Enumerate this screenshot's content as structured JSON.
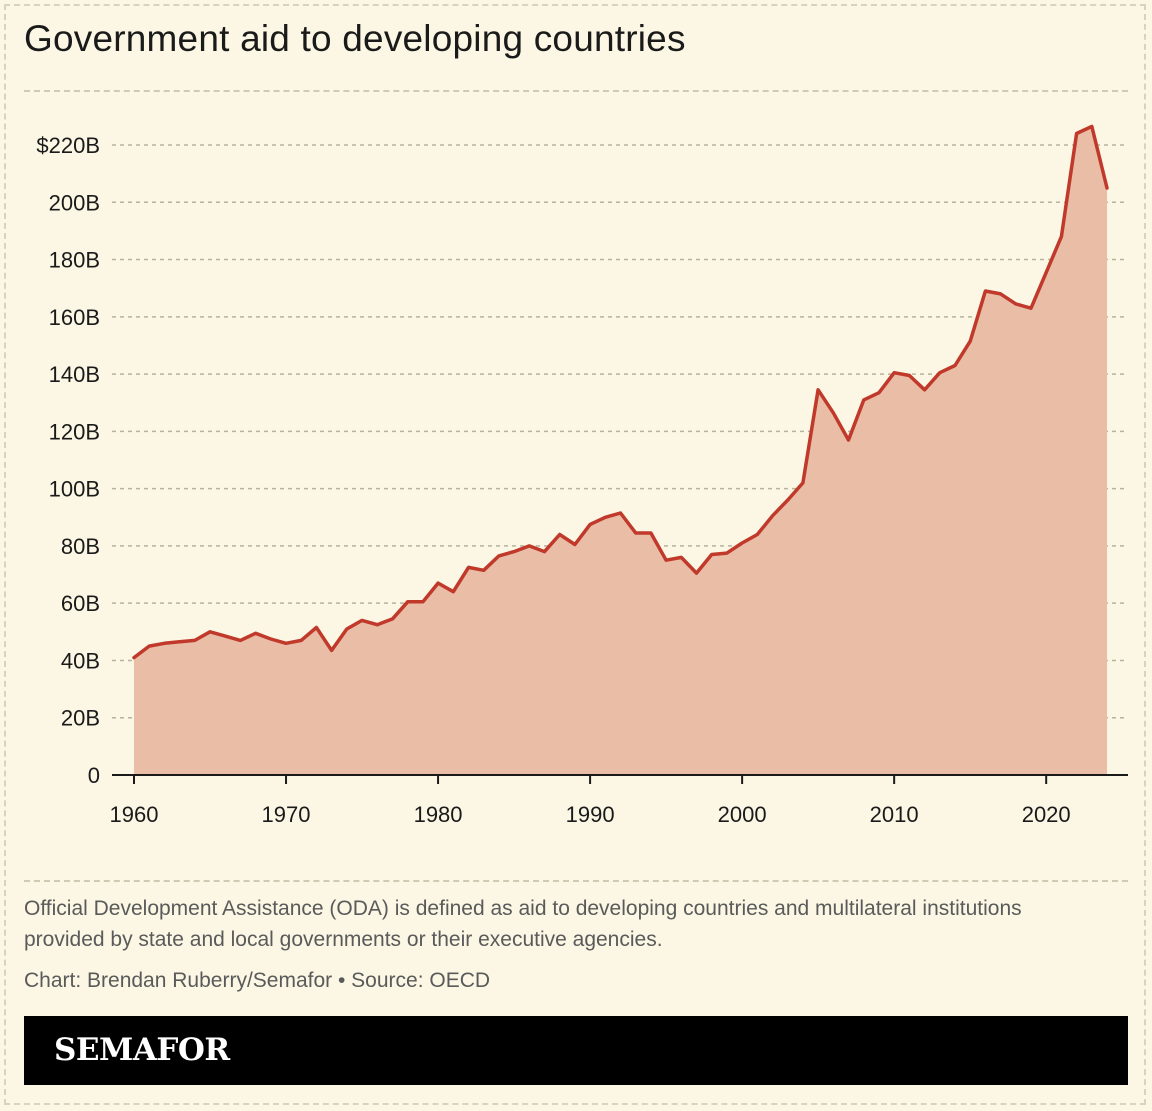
{
  "header": {
    "title": "Government aid to developing countries"
  },
  "chart_data": {
    "type": "area",
    "title": "Government aid to developing countries",
    "xlabel": "",
    "ylabel": "",
    "xlim": [
      1960,
      2024
    ],
    "ylim": [
      0,
      220
    ],
    "x_ticks": [
      1960,
      1970,
      1980,
      1990,
      2000,
      2010,
      2020
    ],
    "x_tick_labels": [
      "1960",
      "1970",
      "1980",
      "1990",
      "2000",
      "2010",
      "2020"
    ],
    "y_ticks": [
      0,
      20,
      40,
      60,
      80,
      100,
      120,
      140,
      160,
      180,
      200,
      220
    ],
    "y_tick_labels": [
      "0",
      "20B",
      "40B",
      "60B",
      "80B",
      "100B",
      "120B",
      "140B",
      "160B",
      "180B",
      "200B",
      "$220B"
    ],
    "grid": true,
    "units": "billions of US dollars",
    "colors": {
      "line": "#c0392b",
      "fill": "#eabda7",
      "grid": "#b8b39e",
      "axis": "#1a1a1a"
    },
    "series": [
      {
        "name": "Official Development Assistance",
        "x": [
          1960,
          1961,
          1962,
          1963,
          1964,
          1965,
          1966,
          1967,
          1968,
          1969,
          1970,
          1971,
          1972,
          1973,
          1974,
          1975,
          1976,
          1977,
          1978,
          1979,
          1980,
          1981,
          1982,
          1983,
          1984,
          1985,
          1986,
          1987,
          1988,
          1989,
          1990,
          1991,
          1992,
          1993,
          1994,
          1995,
          1996,
          1997,
          1998,
          1999,
          2000,
          2001,
          2002,
          2003,
          2004,
          2005,
          2006,
          2007,
          2008,
          2009,
          2010,
          2011,
          2012,
          2013,
          2014,
          2015,
          2016,
          2017,
          2018,
          2019,
          2020,
          2021,
          2022,
          2023,
          2024
        ],
        "values": [
          41,
          45,
          46,
          46.5,
          47,
          50,
          48.5,
          47,
          49.5,
          47.5,
          46,
          47,
          51.5,
          43.5,
          51,
          54,
          52.5,
          54.5,
          60.5,
          60.5,
          67,
          64,
          72.5,
          71.5,
          76.5,
          78,
          80,
          78,
          84,
          80.5,
          87.5,
          90,
          91.5,
          84.5,
          84.5,
          75,
          76,
          70.5,
          77,
          77.5,
          81,
          84,
          90.5,
          96,
          102,
          134.5,
          126.5,
          117,
          131,
          133.5,
          140.5,
          139.5,
          134.5,
          140.5,
          143,
          151.5,
          169,
          168,
          164.5,
          163,
          175.5,
          188,
          224,
          226.5,
          205
        ]
      }
    ]
  },
  "footnote": {
    "note": "Official Development Assistance (ODA) is defined as aid to developing countries and multilateral institutions provided by state and local governments or their executive agencies.",
    "credit": "Chart: Brendan Ruberry/Semafor • Source: OECD"
  },
  "brand": {
    "logo_text": "SEMAFOR",
    "bar_color": "#000000"
  }
}
